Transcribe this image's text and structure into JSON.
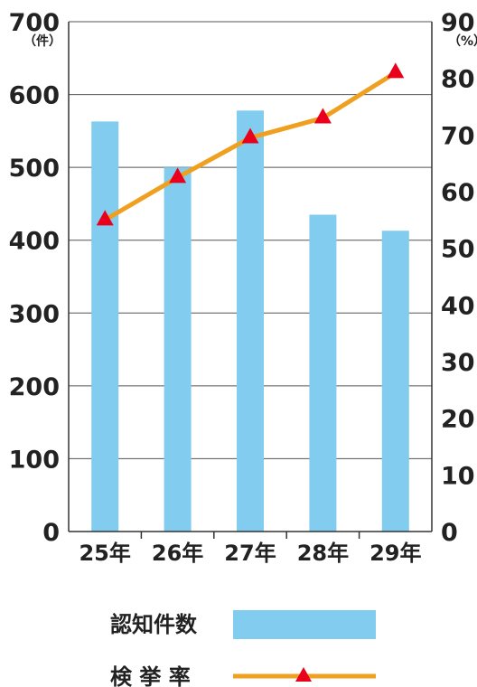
{
  "chart_data": {
    "type": "bar+line",
    "categories": [
      "25年",
      "26年",
      "27年",
      "28年",
      "29年"
    ],
    "series": [
      {
        "name": "認知件数",
        "type": "bar",
        "axis": "left",
        "values": [
          563,
          500,
          578,
          435,
          413
        ],
        "color": "#82cdef"
      },
      {
        "name": "検 挙 率",
        "type": "line",
        "axis": "right",
        "values": [
          55,
          62.5,
          69.5,
          73,
          81
        ],
        "color": "#f0a020",
        "marker": "triangle",
        "marker_color": "#e8001c"
      }
    ],
    "y_left": {
      "unit": "（件）",
      "ylim": [
        0,
        700
      ],
      "ticks": [
        0,
        100,
        200,
        300,
        400,
        500,
        600,
        700
      ]
    },
    "y_right": {
      "unit": "（%）",
      "ylim": [
        0,
        90
      ],
      "ticks": [
        0,
        10,
        20,
        30,
        40,
        50,
        60,
        70,
        80,
        90
      ]
    },
    "grid": true,
    "legend_position": "bottom"
  }
}
